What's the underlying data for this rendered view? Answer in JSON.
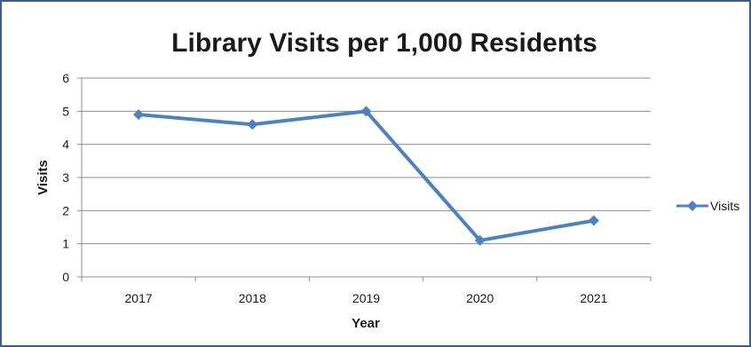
{
  "chart_data": {
    "type": "line",
    "title": "Library Visits per 1,000 Residents",
    "xlabel": "Year",
    "ylabel": "Visits",
    "categories": [
      "2017",
      "2018",
      "2019",
      "2020",
      "2021"
    ],
    "series": [
      {
        "name": "Visits",
        "values": [
          4.9,
          4.6,
          5.0,
          1.1,
          1.7
        ],
        "color": "#4f81bd"
      }
    ],
    "ylim": [
      0,
      6
    ],
    "yticks": [
      "0",
      "1",
      "2",
      "3",
      "4",
      "5",
      "6"
    ],
    "grid": true,
    "legend_position": "right",
    "marker": "diamond"
  }
}
